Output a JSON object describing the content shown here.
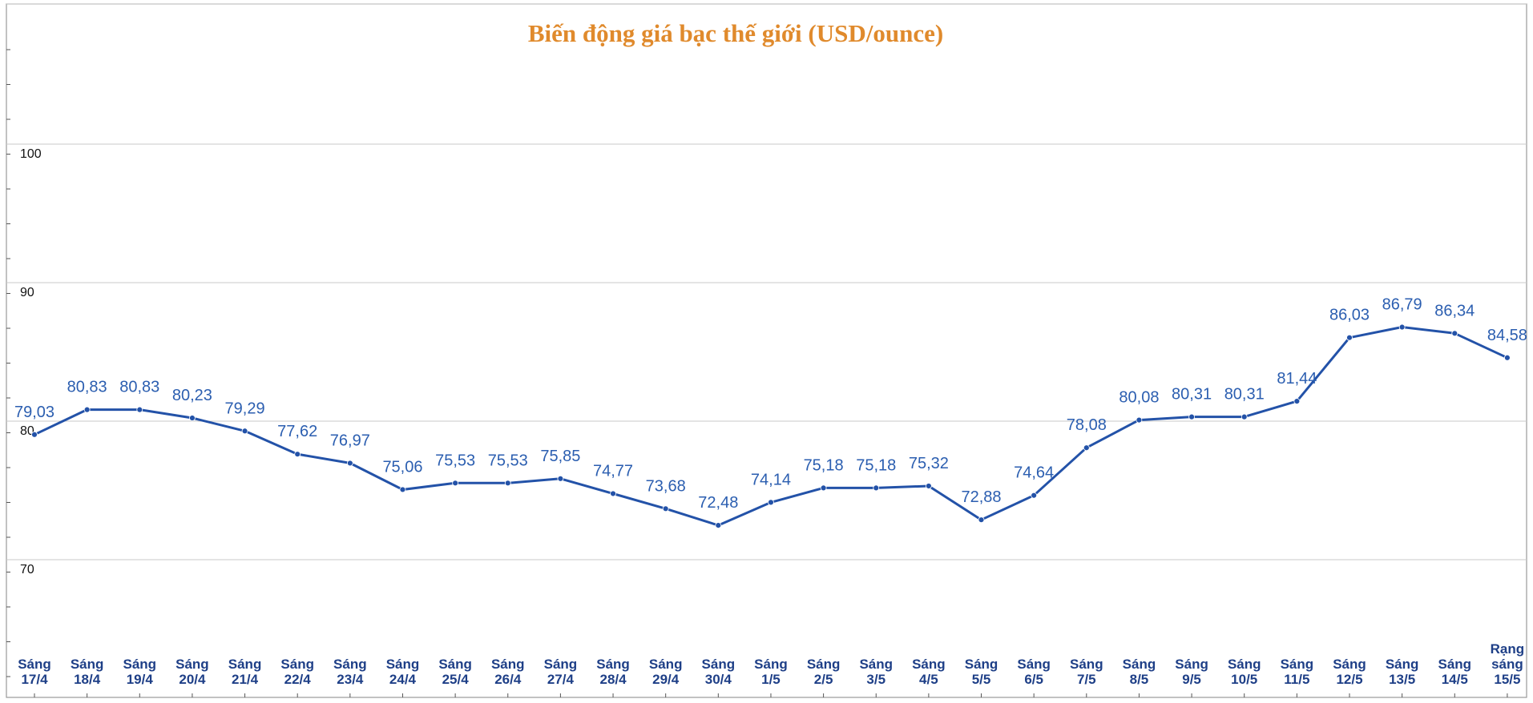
{
  "chart_data": {
    "type": "line",
    "title": "Biến động giá bạc thế giới (USD/ounce)",
    "xlabel": "",
    "ylabel": "",
    "ylim": [
      60,
      110
    ],
    "yticks": [
      70,
      80,
      90,
      100
    ],
    "grid": true,
    "legend": "none",
    "categories": [
      "Sáng 17/4",
      "Sáng 18/4",
      "Sáng 19/4",
      "Sáng 20/4",
      "Sáng 21/4",
      "Sáng 22/4",
      "Sáng 23/4",
      "Sáng 24/4",
      "Sáng 25/4",
      "Sáng 26/4",
      "Sáng 27/4",
      "Sáng 28/4",
      "Sáng 29/4",
      "Sáng 30/4",
      "Sáng 1/5",
      "Sáng 2/5",
      "Sáng 3/5",
      "Sáng 4/5",
      "Sáng 5/5",
      "Sáng 6/5",
      "Sáng 7/5",
      "Sáng 8/5",
      "Sáng 9/5",
      "Sáng 10/5",
      "Sáng 11/5",
      "Sáng 12/5",
      "Sáng 13/5",
      "Sáng 14/5",
      "Rạng sáng 15/5"
    ],
    "values": [
      79.03,
      80.83,
      80.83,
      80.23,
      79.29,
      77.62,
      76.97,
      75.06,
      75.53,
      75.53,
      75.85,
      74.77,
      73.68,
      72.48,
      74.14,
      75.18,
      75.18,
      75.32,
      72.88,
      74.64,
      78.08,
      80.08,
      80.31,
      80.31,
      81.44,
      86.03,
      86.79,
      86.34,
      84.58
    ],
    "value_labels": [
      "79,03",
      "80,83",
      "80,83",
      "80,23",
      "79,29",
      "77,62",
      "76,97",
      "75,06",
      "75,53",
      "75,53",
      "75,85",
      "74,77",
      "73,68",
      "72,48",
      "74,14",
      "75,18",
      "75,18",
      "75,32",
      "72,88",
      "74,64",
      "78,08",
      "80,08",
      "80,31",
      "80,31",
      "81,44",
      "86,03",
      "86,79",
      "86,34",
      "84,58"
    ],
    "line_color": "#2352a8",
    "label_color": "#2b5eb0",
    "title_color": "#e08a2c",
    "category_color": "#1e3f87"
  }
}
